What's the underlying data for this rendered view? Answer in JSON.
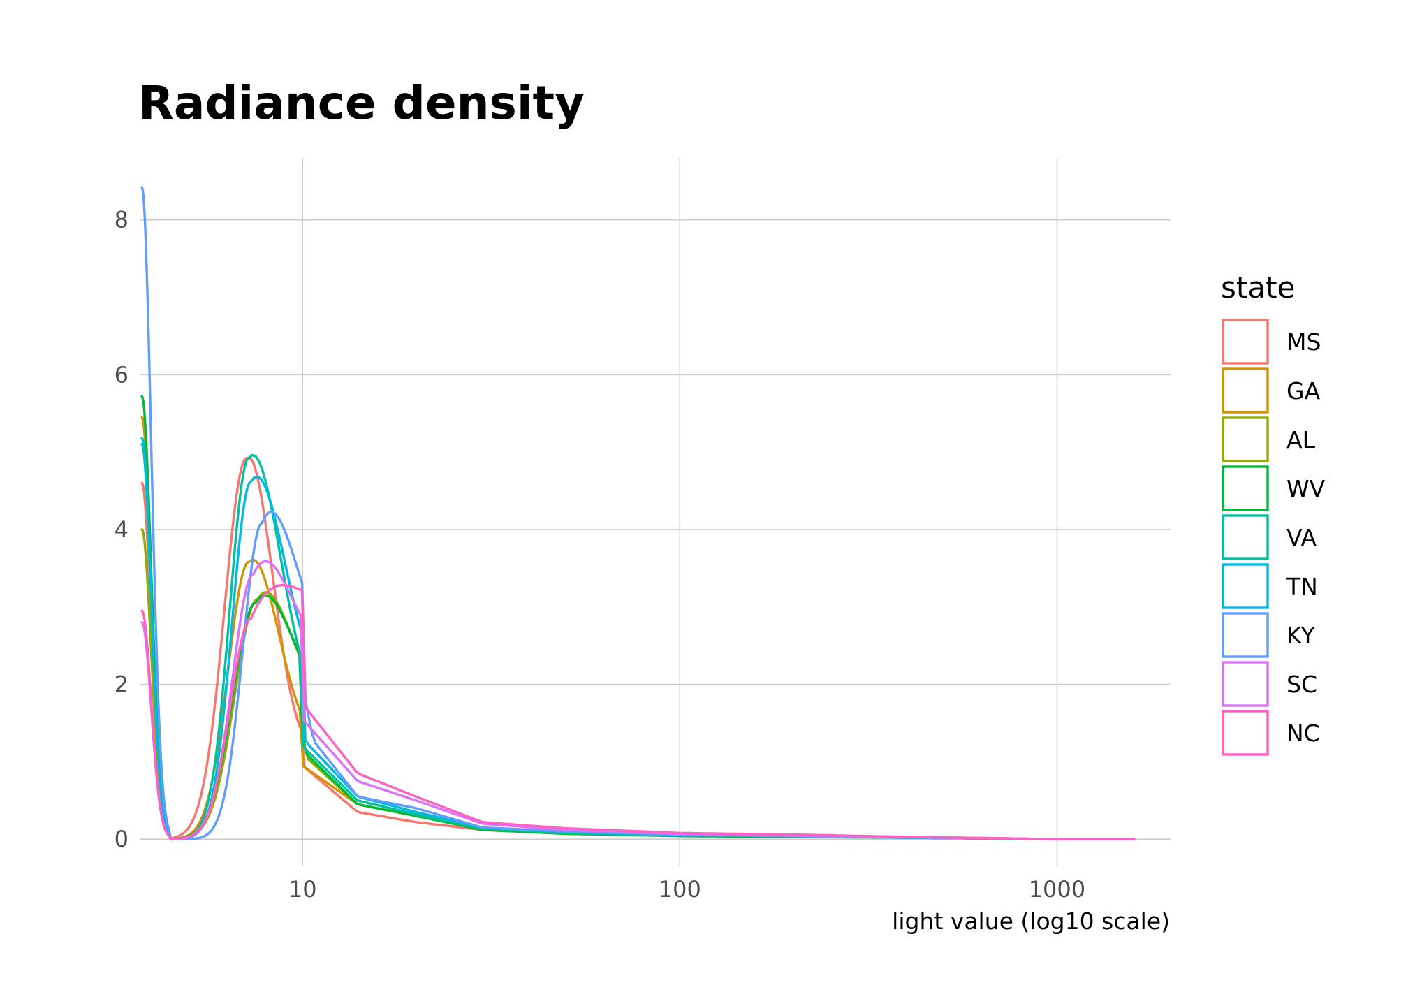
{
  "chart_data": {
    "type": "line",
    "title": "Radiance density",
    "xlabel": "light value (log10 scale)",
    "ylabel": "",
    "x_scale": "log10",
    "xlim": [
      3.7,
      2000
    ],
    "ylim": [
      -0.35,
      8.8
    ],
    "x_ticks": [
      10,
      100,
      1000
    ],
    "x_tick_labels": [
      "10",
      "100",
      "1000"
    ],
    "y_ticks": [
      0,
      2,
      4,
      6,
      8
    ],
    "y_tick_labels": [
      "0",
      "2",
      "4",
      "6",
      "8"
    ],
    "grid": true,
    "legend_title": "state",
    "legend_position": "right",
    "series": [
      {
        "name": "MS",
        "color": "#F8766D",
        "peak_start": 5.4,
        "peak_x": 7.1,
        "peak_y": 4.92,
        "w_left": 0.058,
        "w_right": 0.07,
        "tail_x": [
          10,
          14,
          20,
          30,
          50,
          100,
          200,
          400,
          1000,
          1600
        ],
        "tail_y": [
          0.95,
          0.35,
          0.22,
          0.12,
          0.07,
          0.05,
          0.05,
          0.03,
          0.0,
          0.0
        ]
      },
      {
        "name": "GA",
        "color": "#D39200",
        "peak_start": 5.2,
        "peak_x": 7.2,
        "peak_y": 3.58,
        "w_left": 0.055,
        "w_right": 0.08,
        "tail_x": [
          10,
          14,
          20,
          30,
          50,
          100,
          200,
          400,
          1000,
          1600
        ],
        "tail_y": [
          0.95,
          0.45,
          0.3,
          0.15,
          0.08,
          0.05,
          0.04,
          0.02,
          0.0,
          0.0
        ]
      },
      {
        "name": "AL",
        "color": "#93AA00",
        "peak_start": 5.3,
        "peak_x": 7.6,
        "peak_y": 3.1,
        "w_left": 0.06,
        "w_right": 0.09,
        "tail_x": [
          10,
          14,
          20,
          30,
          50,
          100,
          200,
          400,
          1000,
          1600
        ],
        "tail_y": [
          1.1,
          0.45,
          0.3,
          0.14,
          0.08,
          0.05,
          0.04,
          0.02,
          0.0,
          0.0
        ]
      },
      {
        "name": "WV",
        "color": "#00BA38",
        "peak_start": 5.3,
        "peak_x": 7.5,
        "peak_y": 3.05,
        "w_left": 0.06,
        "w_right": 0.095,
        "tail_x": [
          10,
          14,
          20,
          30,
          50,
          100,
          200,
          400,
          1000,
          1600
        ],
        "tail_y": [
          1.15,
          0.45,
          0.3,
          0.12,
          0.07,
          0.04,
          0.03,
          0.02,
          0.0,
          0.0
        ]
      },
      {
        "name": "VA",
        "color": "#00C19F",
        "peak_start": 5.5,
        "peak_x": 7.2,
        "peak_y": 4.92,
        "w_left": 0.05,
        "w_right": 0.085,
        "tail_x": [
          10,
          14,
          20,
          30,
          50,
          100,
          200,
          400,
          1000,
          1600
        ],
        "tail_y": [
          1.2,
          0.5,
          0.32,
          0.14,
          0.08,
          0.05,
          0.04,
          0.02,
          0.0,
          0.0
        ]
      },
      {
        "name": "TN",
        "color": "#00B9E3",
        "peak_start": 5.6,
        "peak_x": 7.3,
        "peak_y": 4.62,
        "w_left": 0.05,
        "w_right": 0.09,
        "tail_x": [
          10,
          14,
          20,
          30,
          50,
          100,
          200,
          400,
          1000,
          1600
        ],
        "tail_y": [
          1.3,
          0.55,
          0.35,
          0.15,
          0.1,
          0.05,
          0.04,
          0.02,
          0.0,
          0.0
        ]
      },
      {
        "name": "KY",
        "color": "#619CFF",
        "peak_start": 5.7,
        "peak_x": 7.8,
        "peak_y": 4.08,
        "w_left": 0.05,
        "w_right": 0.09,
        "tail_x": [
          10,
          14,
          20,
          30,
          50,
          100,
          200,
          400,
          1000,
          1600
        ],
        "tail_y": [
          1.45,
          0.55,
          0.4,
          0.15,
          0.1,
          0.06,
          0.04,
          0.02,
          0.0,
          0.0
        ]
      },
      {
        "name": "SC",
        "color": "#DB72FB",
        "peak_start": 5.6,
        "peak_x": 7.4,
        "peak_y": 3.42,
        "w_left": 0.055,
        "w_right": 0.1,
        "tail_x": [
          10,
          14,
          20,
          30,
          50,
          100,
          200,
          400,
          1000,
          1600
        ],
        "tail_y": [
          1.55,
          0.75,
          0.5,
          0.2,
          0.12,
          0.07,
          0.05,
          0.03,
          0.0,
          0.0
        ]
      },
      {
        "name": "NC",
        "color": "#FF61C3",
        "peak_start": 5.5,
        "peak_x": 7.3,
        "peak_y": 2.85,
        "w_left": 0.055,
        "w_right": 0.13,
        "tail_x": [
          10,
          14,
          20,
          30,
          50,
          100,
          200,
          400,
          1000,
          1600
        ],
        "tail_y": [
          1.75,
          0.85,
          0.55,
          0.22,
          0.14,
          0.08,
          0.06,
          0.03,
          0.0,
          0.0
        ]
      }
    ],
    "initial_spike": [
      {
        "name": "MS",
        "y": 4.6
      },
      {
        "name": "GA",
        "y": 5.45
      },
      {
        "name": "AL",
        "y": 4.0
      },
      {
        "name": "WV",
        "y": 5.72
      },
      {
        "name": "VA",
        "y": 5.1
      },
      {
        "name": "TN",
        "y": 5.18
      },
      {
        "name": "KY",
        "y": 8.42
      },
      {
        "name": "SC",
        "y": 2.8
      },
      {
        "name": "NC",
        "y": 2.95
      }
    ]
  }
}
